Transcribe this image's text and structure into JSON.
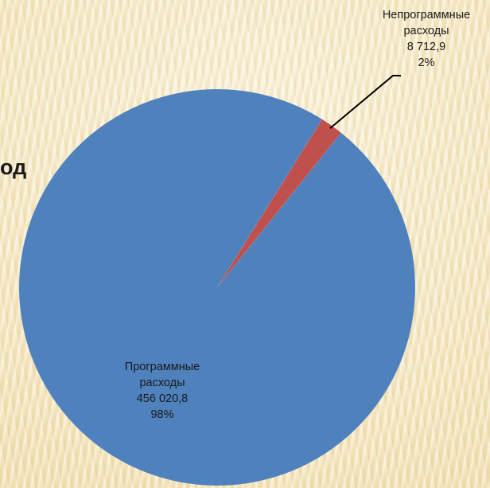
{
  "heading_fragment": "од",
  "chart_data": {
    "type": "pie",
    "slices": [
      {
        "name": "Программные расходы",
        "label_lines": [
          "Программные",
          "расходы",
          "456 020,8",
          "98%"
        ],
        "value": 456020.8,
        "percent": 98,
        "color": "#4f81bd"
      },
      {
        "name": "Непрограммные расходы",
        "label_lines": [
          "Непрограммные",
          "расходы",
          "8 712,9",
          "2%"
        ],
        "value": 8712.9,
        "percent": 2,
        "color": "#c0504d"
      }
    ]
  }
}
